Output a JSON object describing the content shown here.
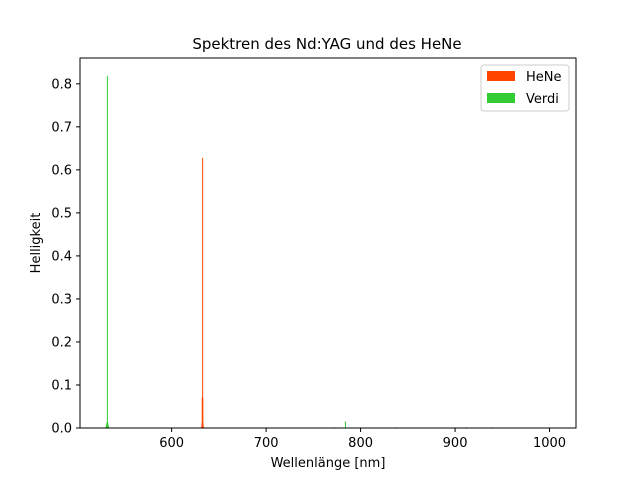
{
  "chart_data": {
    "type": "bar",
    "title": "Spektren des Nd:YAG und des HeNe",
    "xlabel": "Wellenlänge [nm]",
    "ylabel": "Helligkeit",
    "xlim": [
      503,
      1028
    ],
    "ylim": [
      0,
      0.86
    ],
    "xticks": [
      600,
      700,
      800,
      900,
      1000
    ],
    "yticks": [
      0.0,
      0.1,
      0.2,
      0.3,
      0.4,
      0.5,
      0.6,
      0.7,
      0.8
    ],
    "grid": false,
    "legend_position": "top-right",
    "series": [
      {
        "name": "HeNe",
        "color": "#ff4500",
        "points": [
          {
            "x": 631.8,
            "y": 0.004
          },
          {
            "x": 632.2,
            "y": 0.012
          },
          {
            "x": 632.4,
            "y": 0.07
          },
          {
            "x": 632.6,
            "y": 0.073
          },
          {
            "x": 632.8,
            "y": 0.628
          },
          {
            "x": 633.0,
            "y": 0.07
          },
          {
            "x": 633.3,
            "y": 0.01
          },
          {
            "x": 633.8,
            "y": 0.003
          }
        ]
      },
      {
        "name": "Verdi",
        "color": "#32cd32",
        "points": [
          {
            "x": 530.5,
            "y": 0.003
          },
          {
            "x": 531.0,
            "y": 0.008
          },
          {
            "x": 531.4,
            "y": 0.012
          },
          {
            "x": 531.8,
            "y": 0.014
          },
          {
            "x": 532.0,
            "y": 0.818
          },
          {
            "x": 532.3,
            "y": 0.013
          },
          {
            "x": 532.7,
            "y": 0.008
          },
          {
            "x": 533.2,
            "y": 0.004
          },
          {
            "x": 784.0,
            "y": 0.015
          },
          {
            "x": 772.0,
            "y": 0.002
          },
          {
            "x": 838.0,
            "y": 0.002
          },
          {
            "x": 912.0,
            "y": 0.002
          },
          {
            "x": 940.0,
            "y": 0.002
          }
        ]
      }
    ]
  }
}
